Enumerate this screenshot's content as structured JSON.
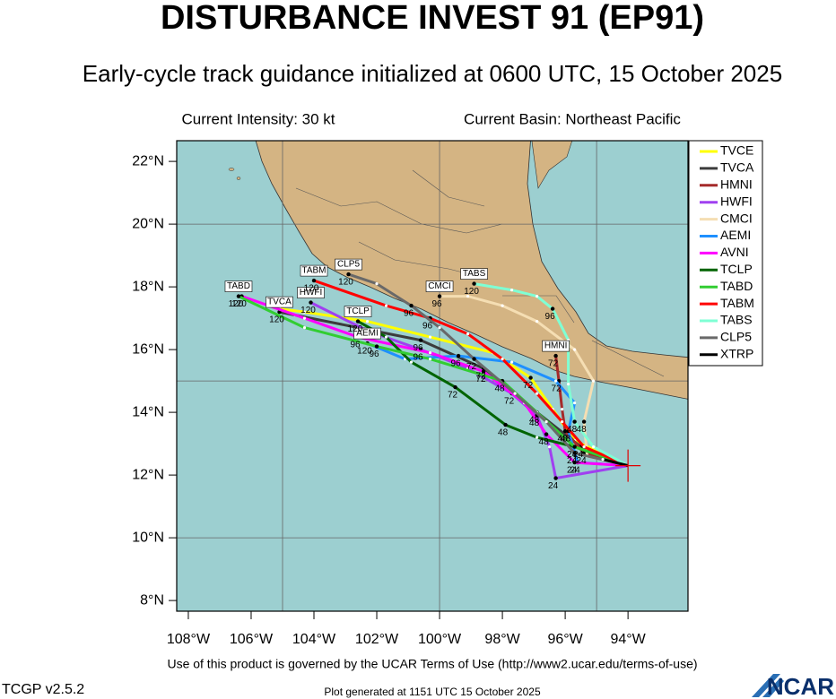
{
  "header": {
    "title": "DISTURBANCE INVEST 91 (EP91)",
    "subtitle": "Early-cycle track guidance initialized at 0600 UTC, 15 October 2025",
    "intensity": "Current Intensity: 30 kt",
    "basin": "Current Basin: Northeast Pacific"
  },
  "chart_data": {
    "type": "track",
    "xlim": [
      -108.37,
      -92.09
    ],
    "ylim": [
      7.66,
      22.66
    ],
    "xticks": [
      {
        "value": -108,
        "label": "108°W"
      },
      {
        "value": -106,
        "label": "106°W"
      },
      {
        "value": -104,
        "label": "104°W"
      },
      {
        "value": -102,
        "label": "102°W"
      },
      {
        "value": -100,
        "label": "100°W"
      },
      {
        "value": -98,
        "label": "98°W"
      },
      {
        "value": -96,
        "label": "96°W"
      },
      {
        "value": -94,
        "label": "94°W"
      }
    ],
    "yticks": [
      {
        "value": 8,
        "label": "8°N"
      },
      {
        "value": 10,
        "label": "10°N"
      },
      {
        "value": 12,
        "label": "12°N"
      },
      {
        "value": 14,
        "label": "14°N"
      },
      {
        "value": 16,
        "label": "16°N"
      },
      {
        "value": 18,
        "label": "18°N"
      },
      {
        "value": 20,
        "label": "20°N"
      },
      {
        "value": 22,
        "label": "22°N"
      }
    ],
    "grid_x": [
      -105,
      -100,
      -95
    ],
    "grid_y": [
      10,
      15,
      20
    ],
    "grid": true,
    "current_position": {
      "x": -94.0,
      "y": 12.3
    },
    "series": [
      {
        "name": "TVCE",
        "color": "#ffff00",
        "end_box": false,
        "x": [
          -94.0,
          -95.7,
          -96.4,
          -97.1,
          -98.3,
          -100.3,
          -102.3,
          -104.3,
          -105.1
        ],
        "values": [
          12.3,
          13.1,
          14.1,
          15.1,
          15.9,
          16.4,
          16.9,
          17.2,
          17.3
        ],
        "labels": [
          null,
          null,
          null,
          "72",
          null,
          null,
          null,
          null,
          null
        ]
      },
      {
        "name": "TVCA",
        "color": "#3c3c3c",
        "end_box": true,
        "x": [
          -94.0,
          -95.5,
          -96.9,
          -98.6,
          -100.6,
          -102.6,
          -104.6,
          -105.1
        ],
        "values": [
          12.3,
          12.9,
          14.0,
          15.4,
          16.3,
          16.7,
          17.1,
          17.2
        ],
        "labels": [
          null,
          "24",
          "48",
          "72",
          "96",
          null,
          null,
          "120"
        ]
      },
      {
        "name": "HMNI",
        "color": "#a52a2a",
        "end_box": true,
        "x": [
          -94.0,
          -95.4,
          -96.0,
          -96.1,
          -96.2,
          -96.3
        ],
        "values": [
          12.3,
          12.7,
          13.4,
          14.1,
          15.0,
          15.8
        ],
        "labels": [
          null,
          "24",
          "48",
          null,
          "72",
          "72"
        ]
      },
      {
        "name": "HWFI",
        "color": "#a040f0",
        "end_box": true,
        "x": [
          -94.0,
          -96.3,
          -96.5,
          -96.9,
          -97.7,
          -99.1,
          -100.6,
          -102.3,
          -104.1
        ],
        "values": [
          12.3,
          11.9,
          12.9,
          13.9,
          14.6,
          15.4,
          16.0,
          16.6,
          17.5
        ],
        "labels": [
          null,
          "24",
          null,
          "48",
          "72",
          null,
          "96",
          null,
          "120"
        ]
      },
      {
        "name": "CMCI",
        "color": "#f5deb3",
        "end_box": true,
        "x": [
          -94.0,
          -95.3,
          -95.4,
          -95.1,
          -95.7,
          -96.9,
          -98.0,
          -99.1,
          -100.0
        ],
        "values": [
          12.3,
          12.6,
          13.7,
          15.0,
          16.0,
          16.9,
          17.4,
          17.7,
          17.7
        ],
        "labels": [
          null,
          null,
          "48",
          null,
          null,
          null,
          null,
          null,
          "96"
        ]
      },
      {
        "name": "AEMI",
        "color": "#1e90ff",
        "end_box": true,
        "x": [
          -94.0,
          -95.6,
          -95.9,
          -95.7,
          -96.3,
          -97.7,
          -99.4,
          -101.1,
          -102.3
        ],
        "values": [
          12.3,
          12.4,
          13.4,
          14.3,
          15.0,
          15.6,
          15.8,
          15.7,
          16.2
        ],
        "labels": [
          null,
          "24",
          "48",
          null,
          null,
          null,
          "96",
          null,
          "120"
        ]
      },
      {
        "name": "AVNI",
        "color": "#ff00ff",
        "end_box": false,
        "x": [
          -94.0,
          -95.7,
          -96.6,
          -97.3,
          -98.6,
          -100.3,
          -102.6,
          -104.3,
          -106.3
        ],
        "values": [
          12.3,
          12.4,
          13.3,
          14.3,
          15.3,
          15.9,
          16.4,
          17.0,
          17.7
        ],
        "labels": [
          null,
          "24",
          "48",
          null,
          "72",
          null,
          "96",
          null,
          "120"
        ]
      },
      {
        "name": "TCLP",
        "color": "#006400",
        "end_box": true,
        "x": [
          -94.0,
          -95.7,
          -96.9,
          -97.9,
          -99.5,
          -100.9,
          -101.7,
          -102.6
        ],
        "values": [
          12.3,
          12.9,
          13.2,
          13.6,
          14.8,
          15.6,
          16.4,
          16.9
        ],
        "labels": [
          null,
          null,
          null,
          "48",
          "72",
          null,
          null,
          "120"
        ]
      },
      {
        "name": "TABD",
        "color": "#32cd32",
        "end_box": true,
        "x": [
          -94.0,
          -95.7,
          -96.9,
          -98.0,
          -100.3,
          -102.0,
          -104.3,
          -106.4
        ],
        "values": [
          12.3,
          12.9,
          14.0,
          15.0,
          15.7,
          16.1,
          16.7,
          17.7
        ],
        "labels": [
          null,
          "24",
          null,
          "48",
          null,
          "96",
          null,
          "120"
        ]
      },
      {
        "name": "TABM",
        "color": "#ff0000",
        "end_box": true,
        "x": [
          -94.0,
          -95.4,
          -96.1,
          -96.9,
          -98.0,
          -99.1,
          -100.3,
          -101.7,
          -104.0
        ],
        "values": [
          12.3,
          12.9,
          13.7,
          14.6,
          15.7,
          16.5,
          17.0,
          17.4,
          18.2
        ],
        "labels": [
          null,
          null,
          null,
          null,
          null,
          null,
          "96",
          null,
          "120"
        ]
      },
      {
        "name": "TABS",
        "color": "#7fffd4",
        "end_box": true,
        "x": [
          -94.0,
          -95.1,
          -95.7,
          -95.9,
          -95.9,
          -96.4,
          -96.9,
          -97.7,
          -98.9
        ],
        "values": [
          12.3,
          12.9,
          13.7,
          14.9,
          16.3,
          17.3,
          17.7,
          17.9,
          18.1
        ],
        "labels": [
          null,
          null,
          "48",
          null,
          null,
          "96",
          null,
          null,
          "120"
        ]
      },
      {
        "name": "CLP5",
        "color": "#696969",
        "end_box": true,
        "x": [
          -94.0,
          -95.7,
          -96.6,
          -97.6,
          -98.9,
          -100.0,
          -100.9,
          -102.0,
          -102.9
        ],
        "values": [
          12.3,
          12.7,
          13.7,
          14.6,
          15.7,
          16.7,
          17.4,
          18.1,
          18.4
        ],
        "labels": [
          null,
          "24",
          null,
          null,
          "72",
          null,
          "96",
          null,
          "120"
        ]
      },
      {
        "name": "XTRP",
        "color": "#000000",
        "end_box": false,
        "x": [
          -94.0,
          -94.8
        ],
        "values": [
          12.3,
          12.5
        ],
        "labels": [
          null,
          null
        ]
      }
    ]
  },
  "footer": {
    "terms": "Use of this product is governed by the UCAR Terms of Use (http://www2.ucar.edu/terms-of-use)",
    "version": "TCGP v2.5.2",
    "generated": "Plot generated at 1151 UTC   15 October 2025",
    "logo": "NCAR"
  }
}
